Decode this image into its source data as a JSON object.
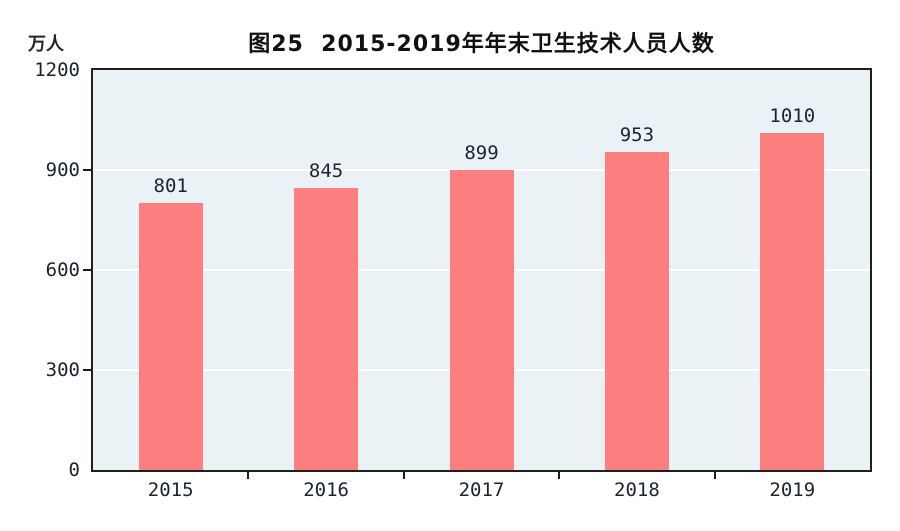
{
  "title": "图25  2015-2019年年末卫生技术人员人数",
  "unit_label": "万人",
  "chart_data": {
    "type": "bar",
    "title": "图25  2015-2019年年末卫生技术人员人数",
    "ylabel": "万人",
    "xlabel": "",
    "categories": [
      "2015",
      "2016",
      "2017",
      "2018",
      "2019"
    ],
    "values": [
      801,
      845,
      899,
      953,
      1010
    ],
    "ylim": [
      0,
      1200
    ],
    "yticks": [
      0,
      300,
      600,
      900,
      1200
    ],
    "grid": "horizontal",
    "legend": "none",
    "bar_labels_shown": true,
    "colors": {
      "bar": "#fc7e7e",
      "plot_background": "#eaf2f5",
      "gridline": "#ffffff",
      "axis": "#1f1f1f",
      "text": "#1c2430",
      "title_text": "#111111",
      "page_background": "#ffffff"
    }
  }
}
